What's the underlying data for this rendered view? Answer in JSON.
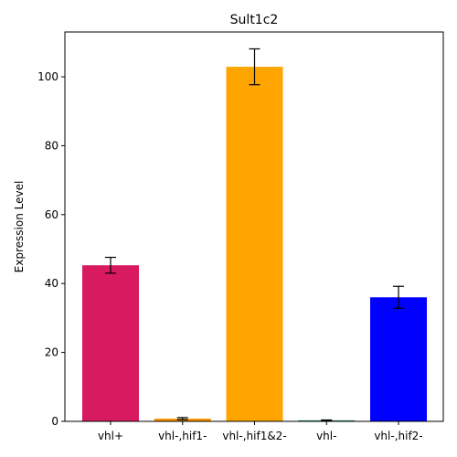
{
  "chart_data": {
    "type": "bar",
    "title": "Sult1c2",
    "xlabel": "",
    "ylabel": "Expression Level",
    "ylim": [
      0,
      113
    ],
    "yticks": [
      0,
      20,
      40,
      60,
      80,
      100
    ],
    "grid": false,
    "categories": [
      "vhl+",
      "vhl-,hif1-",
      "vhl-,hif1&2-",
      "vhl-",
      "vhl-,hif2-"
    ],
    "values": [
      45.3,
      0.8,
      102.9,
      0.3,
      36.0
    ],
    "errors": [
      2.3,
      0.3,
      5.2,
      0.1,
      3.2
    ],
    "colors": [
      "#d81b60",
      "#ff9800",
      "#ffa500",
      "#2e8b57",
      "#0000ff"
    ]
  }
}
